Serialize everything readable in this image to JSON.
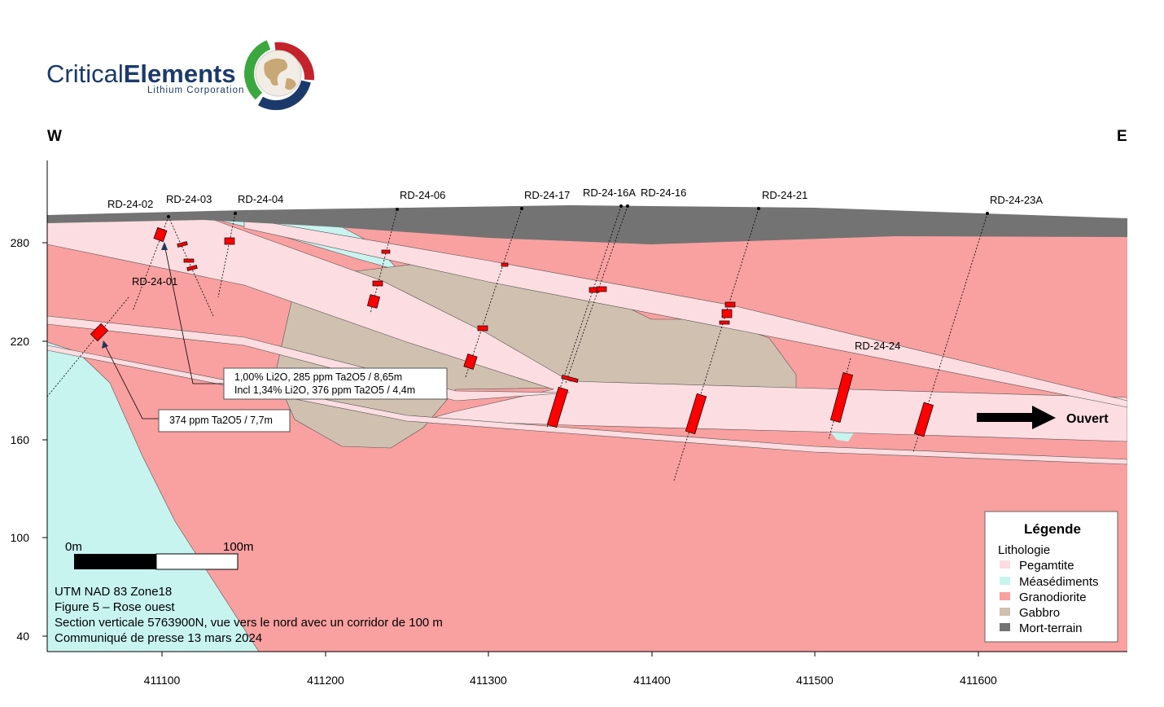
{
  "logo": {
    "name_light": "Critical",
    "name_bold": "Elements",
    "subtitle": "Lithium Corporation"
  },
  "orientation": {
    "west": "W",
    "east": "E"
  },
  "axes": {
    "y_ticks": [
      "280",
      "220",
      "160",
      "100",
      "40"
    ],
    "x_ticks": [
      "411100",
      "411200",
      "411300",
      "411400",
      "411500",
      "411600"
    ]
  },
  "drill_holes": [
    "RD-24-02",
    "RD-24-03",
    "RD-24-04",
    "RD-24-06",
    "RD-24-17",
    "RD-24-16A",
    "RD-24-16",
    "RD-24-21",
    "RD-24-23A",
    "RD-24-01",
    "RD-24-24"
  ],
  "annotations": {
    "callout1_line1": "1,00% Li2O, 285 ppm Ta2O5 / 8,65m",
    "callout1_line2": "Incl 1,34% Li2O, 376 ppm Ta2O5 / 4,4m",
    "callout2": "374 ppm Ta2O5 / 7,7m",
    "open": "Ouvert"
  },
  "scale_bar": {
    "start": "0m",
    "end": "100m"
  },
  "info": [
    "UTM NAD 83 Zone18",
    "Figure 5 – Rose ouest",
    "Section verticale 5763900N, vue vers le nord avec un corridor de 100 m",
    "Communiqué de presse 13 mars 2024"
  ],
  "legend": {
    "title": "Légende",
    "subtitle": "Lithologie",
    "items": [
      {
        "label": "Pegamtite",
        "color": "#fcdde1"
      },
      {
        "label": "Méasédiments",
        "color": "#c8f4f0"
      },
      {
        "label": "Granodiorite",
        "color": "#f9a0a0"
      },
      {
        "label": "Gabbro",
        "color": "#d0c0b0"
      },
      {
        "label": "Mort-terrain",
        "color": "#737373"
      }
    ]
  }
}
